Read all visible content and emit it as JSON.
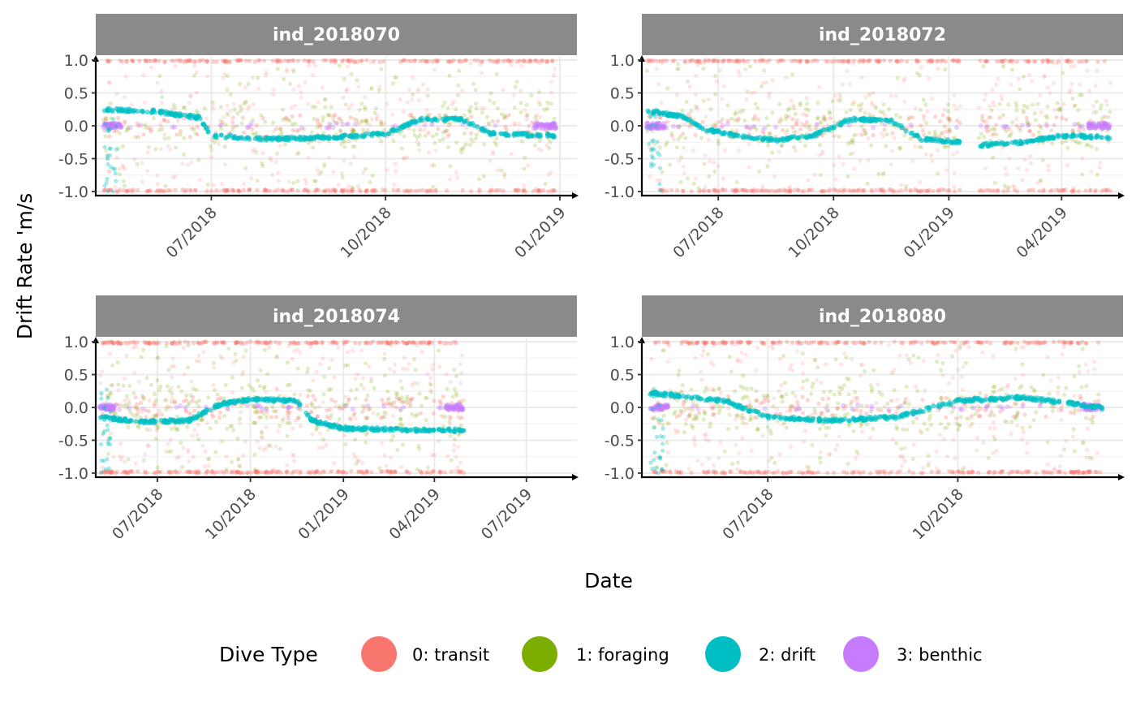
{
  "chart_data": {
    "type": "scatter",
    "ylabel": "Drift Rate 'm/s",
    "xlabel": "Date",
    "ylim": [
      -1.05,
      1.05
    ],
    "y_ticks": [
      -1.0,
      -0.5,
      0.0,
      0.5,
      1.0
    ],
    "y_tick_labels": [
      "-1.0",
      "-0.5",
      "0.0",
      "0.5",
      "1.0"
    ],
    "grid": true,
    "legend": {
      "title": "Dive Type",
      "position": "bottom",
      "entries": [
        {
          "label": "0: transit",
          "color": "#F8766D"
        },
        {
          "label": "1: foraging",
          "color": "#7CAE00"
        },
        {
          "label": "2: drift",
          "color": "#00BFC4"
        },
        {
          "label": "3: benthic",
          "color": "#C77CFF"
        }
      ]
    },
    "panels": [
      {
        "title": "ind_2018070",
        "xlim": [
          "2018-05-01",
          "2019-01-10"
        ],
        "x_ticks": [
          "2018-07-01",
          "2018-10-01",
          "2019-01-01"
        ],
        "x_tick_labels": [
          "07/2018",
          "10/2018",
          "01/2019"
        ],
        "data_range": [
          "2018-05-05",
          "2018-12-30"
        ],
        "segments": [
          [
            "2018-05-05",
            "2018-12-30"
          ]
        ],
        "drift_curve": [
          {
            "date": "2018-05-05",
            "y": 0.25
          },
          {
            "date": "2018-06-01",
            "y": 0.22
          },
          {
            "date": "2018-06-25",
            "y": 0.12
          },
          {
            "date": "2018-07-01",
            "y": -0.15
          },
          {
            "date": "2018-08-01",
            "y": -0.2
          },
          {
            "date": "2018-09-01",
            "y": -0.18
          },
          {
            "date": "2018-10-01",
            "y": -0.12
          },
          {
            "date": "2018-10-20",
            "y": 0.1
          },
          {
            "date": "2018-11-10",
            "y": 0.1
          },
          {
            "date": "2018-11-25",
            "y": -0.12
          },
          {
            "date": "2018-12-30",
            "y": -0.15
          }
        ]
      },
      {
        "title": "ind_2018072",
        "xlim": [
          "2018-05-01",
          "2019-05-20"
        ],
        "x_ticks": [
          "2018-07-01",
          "2018-10-01",
          "2019-01-01",
          "2019-04-01"
        ],
        "x_tick_labels": [
          "07/2018",
          "10/2018",
          "01/2019",
          "04/2019"
        ],
        "data_range": [
          "2018-05-05",
          "2019-05-10"
        ],
        "segments": [
          [
            "2018-05-05",
            "2019-01-10"
          ],
          [
            "2019-01-25",
            "2019-05-10"
          ]
        ],
        "drift_curve": [
          {
            "date": "2018-05-05",
            "y": 0.22
          },
          {
            "date": "2018-06-01",
            "y": 0.15
          },
          {
            "date": "2018-06-20",
            "y": -0.05
          },
          {
            "date": "2018-07-15",
            "y": -0.15
          },
          {
            "date": "2018-08-15",
            "y": -0.22
          },
          {
            "date": "2018-09-15",
            "y": -0.15
          },
          {
            "date": "2018-10-15",
            "y": 0.1
          },
          {
            "date": "2018-11-15",
            "y": 0.08
          },
          {
            "date": "2018-12-10",
            "y": -0.2
          },
          {
            "date": "2019-01-10",
            "y": -0.25
          },
          {
            "date": "2019-01-25",
            "y": -0.3
          },
          {
            "date": "2019-03-01",
            "y": -0.25
          },
          {
            "date": "2019-04-01",
            "y": -0.15
          },
          {
            "date": "2019-05-10",
            "y": -0.18
          }
        ]
      },
      {
        "title": "ind_2018074",
        "xlim": [
          "2018-05-01",
          "2019-08-20"
        ],
        "x_ticks": [
          "2018-07-01",
          "2018-10-01",
          "2019-01-01",
          "2019-04-01",
          "2019-07-01"
        ],
        "x_tick_labels": [
          "07/2018",
          "10/2018",
          "01/2019",
          "04/2019",
          "07/2019"
        ],
        "data_range": [
          "2018-05-05",
          "2019-04-30"
        ],
        "segments": [
          [
            "2018-05-05",
            "2018-11-20"
          ],
          [
            "2018-11-25",
            "2019-04-01"
          ],
          [
            "2019-04-05",
            "2019-04-30"
          ]
        ],
        "drift_curve": [
          {
            "date": "2018-05-05",
            "y": -0.15
          },
          {
            "date": "2018-06-15",
            "y": -0.22
          },
          {
            "date": "2018-08-01",
            "y": -0.2
          },
          {
            "date": "2018-09-01",
            "y": 0.05
          },
          {
            "date": "2018-10-01",
            "y": 0.12
          },
          {
            "date": "2018-11-15",
            "y": 0.1
          },
          {
            "date": "2018-12-01",
            "y": -0.2
          },
          {
            "date": "2019-01-01",
            "y": -0.32
          },
          {
            "date": "2019-04-01",
            "y": -0.35
          },
          {
            "date": "2019-04-30",
            "y": -0.35
          }
        ]
      },
      {
        "title": "ind_2018080",
        "xlim": [
          "2018-05-01",
          "2018-12-20"
        ],
        "x_ticks": [
          "2018-07-01",
          "2018-10-01"
        ],
        "x_tick_labels": [
          "07/2018",
          "10/2018"
        ],
        "data_range": [
          "2018-05-05",
          "2018-12-10"
        ],
        "segments": [
          [
            "2018-05-05",
            "2018-12-10"
          ]
        ],
        "drift_curve": [
          {
            "date": "2018-05-05",
            "y": 0.22
          },
          {
            "date": "2018-06-10",
            "y": 0.1
          },
          {
            "date": "2018-07-01",
            "y": -0.15
          },
          {
            "date": "2018-08-01",
            "y": -0.2
          },
          {
            "date": "2018-09-01",
            "y": -0.15
          },
          {
            "date": "2018-10-01",
            "y": 0.1
          },
          {
            "date": "2018-11-01",
            "y": 0.15
          },
          {
            "date": "2018-12-10",
            "y": 0.0
          }
        ]
      }
    ]
  }
}
